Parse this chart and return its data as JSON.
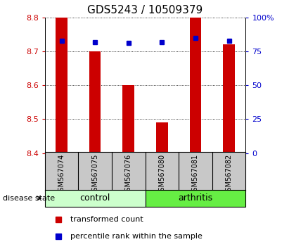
{
  "title": "GDS5243 / 10509379",
  "samples": [
    "GSM567074",
    "GSM567075",
    "GSM567076",
    "GSM567080",
    "GSM567081",
    "GSM567082"
  ],
  "groups": [
    "control",
    "control",
    "control",
    "arthritis",
    "arthritis",
    "arthritis"
  ],
  "red_values": [
    8.8,
    8.7,
    8.6,
    8.49,
    8.8,
    8.72
  ],
  "blue_values": [
    83,
    82,
    81,
    82,
    85,
    83
  ],
  "ylim_left": [
    8.4,
    8.8
  ],
  "ylim_right": [
    0,
    100
  ],
  "yticks_left": [
    8.4,
    8.5,
    8.6,
    8.7,
    8.8
  ],
  "yticks_right": [
    0,
    25,
    50,
    75,
    100
  ],
  "ytick_labels_right": [
    "0",
    "25",
    "50",
    "75",
    "100%"
  ],
  "bar_width": 0.35,
  "bar_color": "#cc0000",
  "dot_color": "#0000cc",
  "bar_bottom": 8.4,
  "control_color": "#ccffcc",
  "arthritis_color": "#66ee44",
  "label_bg_color": "#c8c8c8",
  "grid_color": "black",
  "title_fontsize": 11,
  "tick_fontsize": 8,
  "sample_fontsize": 7,
  "legend_fontsize": 8,
  "legend_red": "transformed count",
  "legend_blue": "percentile rank within the sample",
  "disease_state_label": "disease state",
  "control_label": "control",
  "arthritis_label": "arthritis"
}
